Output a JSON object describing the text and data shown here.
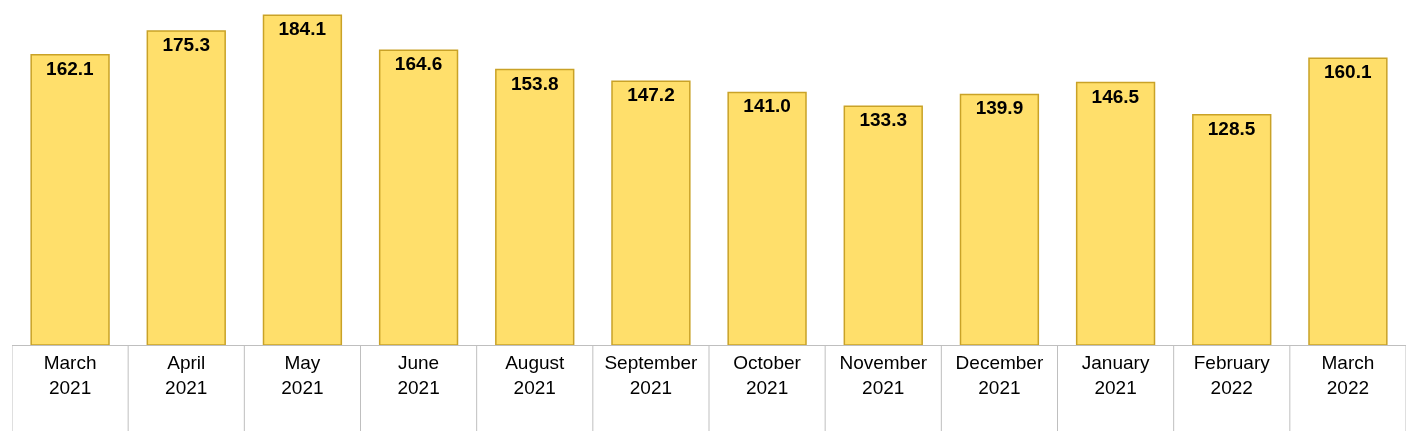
{
  "chart_data": {
    "type": "bar",
    "categories": [
      "March\n2021",
      "April\n2021",
      "May\n2021",
      "June\n2021",
      "August\n2021",
      "September\n2021",
      "October\n2021",
      "November\n2021",
      "December\n2021",
      "January\n2021",
      "February\n2022",
      "March\n2022"
    ],
    "values": [
      162.1,
      175.3,
      184.1,
      164.6,
      153.8,
      147.2,
      141.0,
      133.3,
      139.9,
      146.5,
      128.5,
      160.1
    ],
    "value_labels": [
      "162.1",
      "175.3",
      "184.1",
      "164.6",
      "153.8",
      "147.2",
      "141.0",
      "133.3",
      "139.9",
      "146.5",
      "128.5",
      "160.1"
    ],
    "color": "#ffdf6b"
  }
}
